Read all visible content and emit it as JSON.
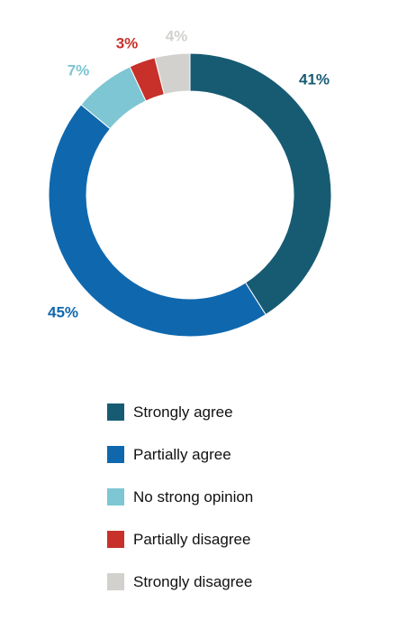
{
  "chart_data": {
    "type": "pie",
    "donut": true,
    "title": "",
    "legend_position": "bottom",
    "categories": [
      "Strongly agree",
      "Partially agree",
      "No strong opinion",
      "Partially disagree",
      "Strongly disagree"
    ],
    "values": [
      41,
      45,
      7,
      3,
      4
    ],
    "value_labels": [
      "41%",
      "45%",
      "7%",
      "3%",
      "4%"
    ],
    "colors": [
      "#175b73",
      "#0f68ae",
      "#7ec6d3",
      "#c7312a",
      "#d2d1ce"
    ]
  }
}
